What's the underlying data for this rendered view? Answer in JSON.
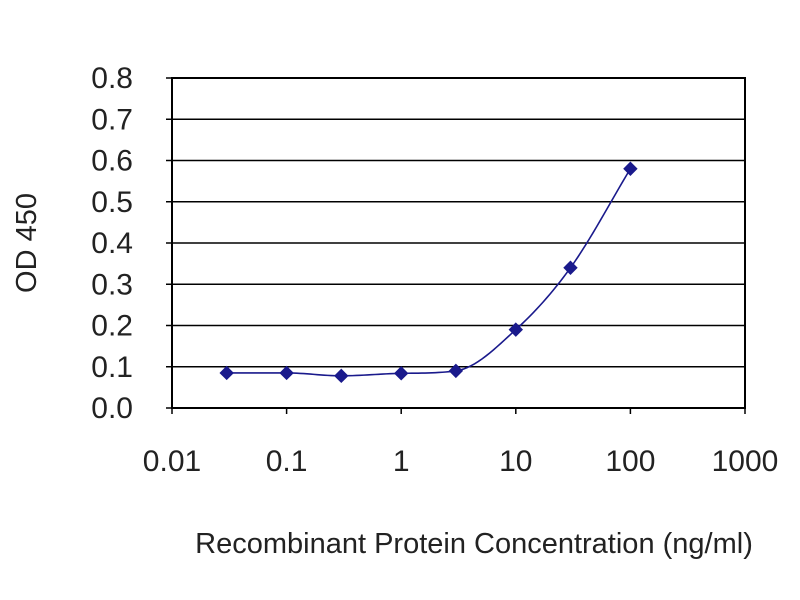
{
  "chart_data": {
    "type": "scatter",
    "title": "",
    "xlabel": "Recombinant Protein Concentration (ng/ml)",
    "ylabel": "OD 450",
    "x_scale": "log",
    "xlim": [
      0.01,
      1000
    ],
    "ylim": [
      0,
      0.8
    ],
    "x_ticks": [
      0.01,
      0.1,
      1,
      10,
      100,
      1000
    ],
    "x_tick_labels": [
      "0.01",
      "0.1",
      "1",
      "10",
      "100",
      "1000"
    ],
    "y_ticks": [
      0,
      0.1,
      0.2,
      0.3,
      0.4,
      0.5,
      0.6,
      0.7,
      0.8
    ],
    "y_tick_labels": [
      "0.0",
      "0.1",
      "0.2",
      "0.3",
      "0.4",
      "0.5",
      "0.6",
      "0.7",
      "0.8"
    ],
    "grid": "horizontal",
    "legend": "none",
    "series": [
      {
        "x": [
          0.03,
          0.1,
          0.3,
          1,
          3,
          10,
          30,
          100
        ],
        "y": [
          0.085,
          0.085,
          0.078,
          0.084,
          0.09,
          0.19,
          0.34,
          0.58
        ],
        "marker": "diamond",
        "curve": "smooth fit"
      }
    ],
    "colors": {
      "series": "#1a1a8c",
      "grid": "#000000",
      "axis": "#000000"
    }
  }
}
